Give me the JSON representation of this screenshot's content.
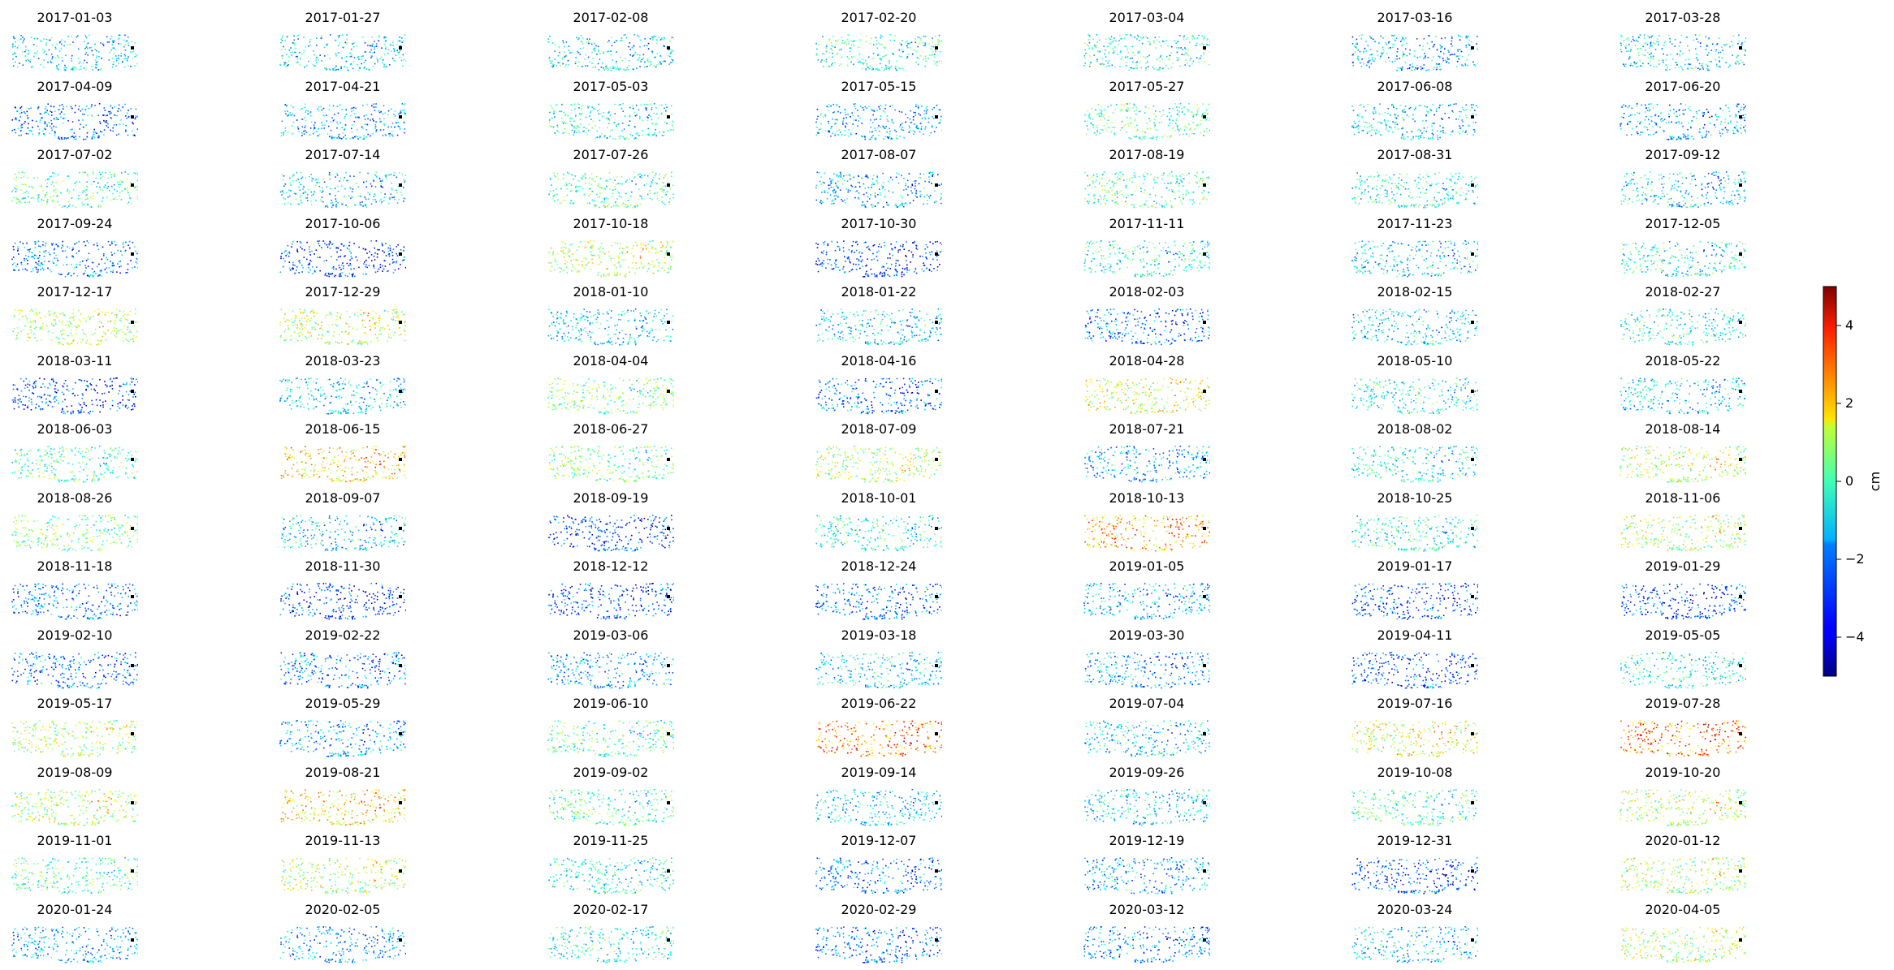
{
  "chart_data": {
    "type": "scatter",
    "panel_titles": [
      "2017-01-03",
      "2017-01-27",
      "2017-02-08",
      "2017-02-20",
      "2017-03-04",
      "2017-03-16",
      "2017-03-28",
      "2017-04-09",
      "2017-04-21",
      "2017-05-03",
      "2017-05-15",
      "2017-05-27",
      "2017-06-08",
      "2017-06-20",
      "2017-07-02",
      "2017-07-14",
      "2017-07-26",
      "2017-08-07",
      "2017-08-19",
      "2017-08-31",
      "2017-09-12",
      "2017-09-24",
      "2017-10-06",
      "2017-10-18",
      "2017-10-30",
      "2017-11-11",
      "2017-11-23",
      "2017-12-05",
      "2017-12-17",
      "2017-12-29",
      "2018-01-10",
      "2018-01-22",
      "2018-02-03",
      "2018-02-15",
      "2018-02-27",
      "2018-03-11",
      "2018-03-23",
      "2018-04-04",
      "2018-04-16",
      "2018-04-28",
      "2018-05-10",
      "2018-05-22",
      "2018-06-03",
      "2018-06-15",
      "2018-06-27",
      "2018-07-09",
      "2018-07-21",
      "2018-08-02",
      "2018-08-14",
      "2018-08-26",
      "2018-09-07",
      "2018-09-19",
      "2018-10-01",
      "2018-10-13",
      "2018-10-25",
      "2018-11-06",
      "2018-11-18",
      "2018-11-30",
      "2018-12-12",
      "2018-12-24",
      "2019-01-05",
      "2019-01-17",
      "2019-01-29",
      "2019-02-10",
      "2019-02-22",
      "2019-03-06",
      "2019-03-18",
      "2019-03-30",
      "2019-04-11",
      "2019-05-05",
      "2019-05-17",
      "2019-05-29",
      "2019-06-10",
      "2019-06-22",
      "2019-07-04",
      "2019-07-16",
      "2019-07-28",
      "2019-08-09",
      "2019-08-21",
      "2019-09-02",
      "2019-09-14",
      "2019-09-26",
      "2019-10-08",
      "2019-10-20",
      "2019-11-01",
      "2019-11-13",
      "2019-11-25",
      "2019-12-07",
      "2019-12-19",
      "2019-12-31",
      "2020-01-12",
      "2020-01-24",
      "2020-02-05",
      "2020-02-17",
      "2020-02-29",
      "2020-03-12",
      "2020-03-24",
      "2020-04-05"
    ],
    "panel_mean_cm": [
      -1.5,
      -1.5,
      -1.5,
      -1.0,
      -1.0,
      -2.0,
      -1.5,
      -2.5,
      -2.0,
      -1.0,
      -2.0,
      -0.5,
      -1.5,
      -2.0,
      -0.5,
      -1.5,
      -0.5,
      -2.0,
      -0.5,
      -1.0,
      -1.5,
      -2.5,
      -3.0,
      0.5,
      -3.0,
      -1.0,
      -1.5,
      -1.0,
      0.5,
      0.5,
      -1.5,
      -1.5,
      -2.5,
      -1.5,
      -1.0,
      -3.0,
      -1.5,
      0.0,
      -2.5,
      1.0,
      -1.0,
      -1.5,
      -0.5,
      1.5,
      0.0,
      0.5,
      -2.0,
      -1.0,
      0.5,
      0.0,
      -1.5,
      -3.0,
      -1.0,
      2.0,
      -1.0,
      0.5,
      -2.5,
      -3.0,
      -3.0,
      -2.5,
      -2.0,
      -3.0,
      -3.0,
      -2.5,
      -2.5,
      -2.0,
      -1.5,
      -2.0,
      -3.0,
      -1.0,
      0.5,
      -2.0,
      -0.5,
      2.5,
      -1.5,
      1.0,
      2.5,
      0.5,
      1.5,
      -0.5,
      -1.5,
      -1.5,
      -0.5,
      0.5,
      -0.5,
      0.5,
      -1.0,
      -2.5,
      -2.0,
      -3.0,
      0.5,
      -2.0,
      -2.0,
      -1.0,
      -2.5,
      -2.5,
      -1.5,
      0.5
    ],
    "reference_point": "black square (each panel)",
    "colorbar": {
      "label": "cm",
      "min": -5,
      "max": 5,
      "ticks": [
        4,
        2,
        0,
        -2,
        -4
      ],
      "tick_labels": [
        "4",
        "2",
        "0",
        "−2",
        "−4"
      ],
      "colormap": "jet"
    }
  },
  "colors": {
    "background": "#ffffff",
    "text": "#000000",
    "reference_point": "#000000"
  }
}
